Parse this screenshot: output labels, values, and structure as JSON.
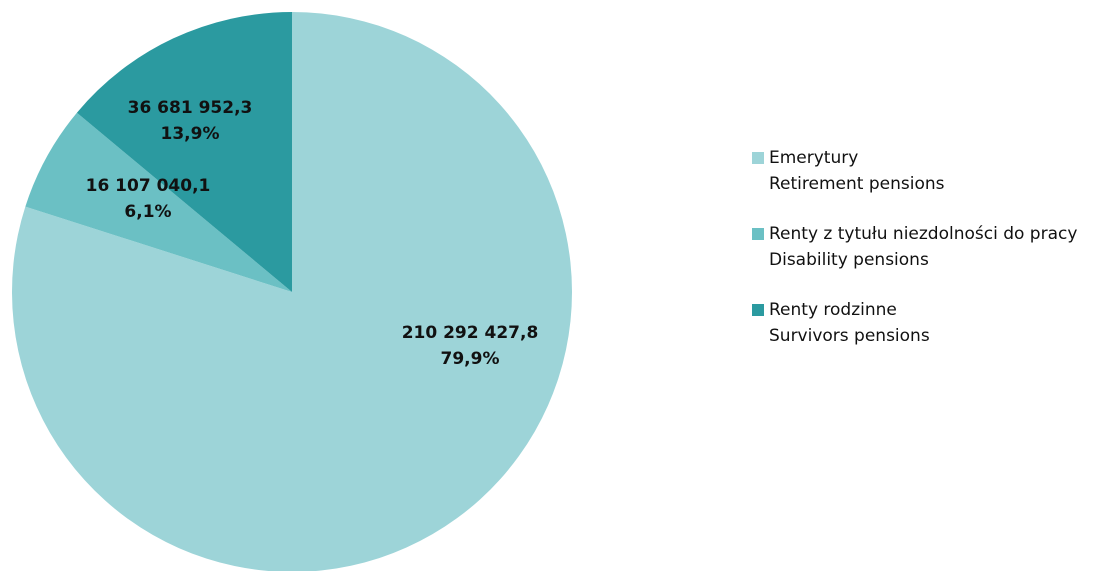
{
  "chart_data": {
    "type": "pie",
    "categories": [
      "Emerytury",
      "Renty z tytułu niezdolności do pracy",
      "Renty rodzinne"
    ],
    "categories_en": [
      "Retirement pensions",
      "Disability pensions",
      "Survivors pensions"
    ],
    "values": [
      210292427.8,
      16107040.1,
      36681952.3
    ],
    "value_labels": [
      "210 292 427,8",
      "16 107 040,1",
      "36 681 952,3"
    ],
    "percents": [
      79.9,
      6.1,
      13.9
    ],
    "percent_labels": [
      "79,9%",
      "6,1%",
      "13,9%"
    ],
    "colors": [
      "#9dd4d8",
      "#6bc0c4",
      "#2b9aa0"
    ],
    "legend": "right"
  }
}
